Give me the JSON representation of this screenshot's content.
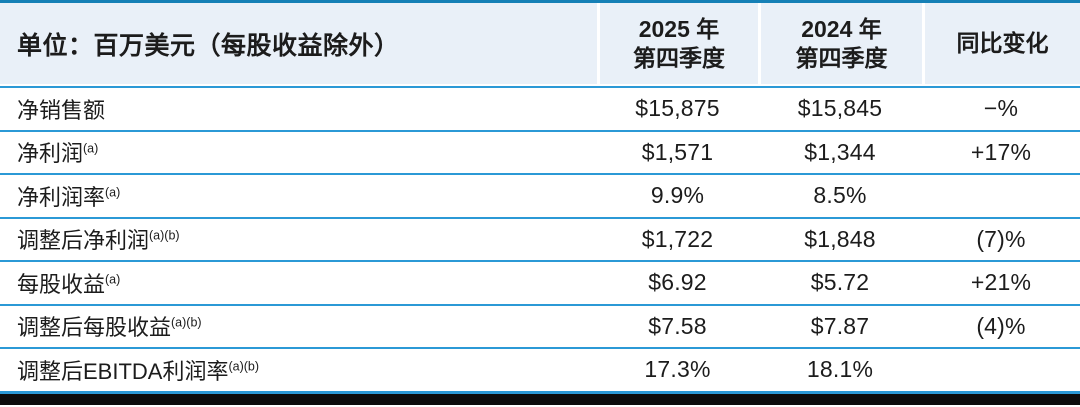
{
  "chart_data": {
    "type": "table",
    "title": "单位：百万美元（每股收益除外）",
    "columns": [
      "2025 年 第四季度",
      "2024 年 第四季度",
      "同比变化"
    ],
    "rows": [
      {
        "label": "净销售额",
        "footnote": "",
        "q4_2025": "$15,875",
        "q4_2024": "$15,845",
        "yoy_change": "−%"
      },
      {
        "label": "净利润",
        "footnote": "(a)",
        "q4_2025": "$1,571",
        "q4_2024": "$1,344",
        "yoy_change": "+17%"
      },
      {
        "label": "净利润率",
        "footnote": "(a)",
        "q4_2025": "9.9%",
        "q4_2024": "8.5%",
        "yoy_change": ""
      },
      {
        "label": "调整后净利润",
        "footnote": "(a)(b)",
        "q4_2025": "$1,722",
        "q4_2024": "$1,848",
        "yoy_change": "(7)%"
      },
      {
        "label": "每股收益",
        "footnote": "(a)",
        "q4_2025": "$6.92",
        "q4_2024": "$5.72",
        "yoy_change": "+21%"
      },
      {
        "label": "调整后每股收益",
        "footnote": "(a)(b)",
        "q4_2025": "$7.58",
        "q4_2024": "$7.87",
        "yoy_change": "(4)%"
      },
      {
        "label": "调整后EBITDA利润率",
        "footnote": "(a)(b)",
        "q4_2025": "17.3%",
        "q4_2024": "18.1%",
        "yoy_change": ""
      }
    ]
  },
  "header": {
    "unit_label": "单位：百万美元（每股收益除外）",
    "col_2025": {
      "line1": "2025 年",
      "line2": "第四季度"
    },
    "col_2024": {
      "line1": "2024 年",
      "line2": "第四季度"
    },
    "col_change": "同比变化"
  },
  "colors": {
    "top_border": "#1580b6",
    "header_bg": "#e9f0f8",
    "divider_blue": "#2b99d6",
    "bottom_bar": "#0c0c0c",
    "text": "#1c1c1c"
  }
}
